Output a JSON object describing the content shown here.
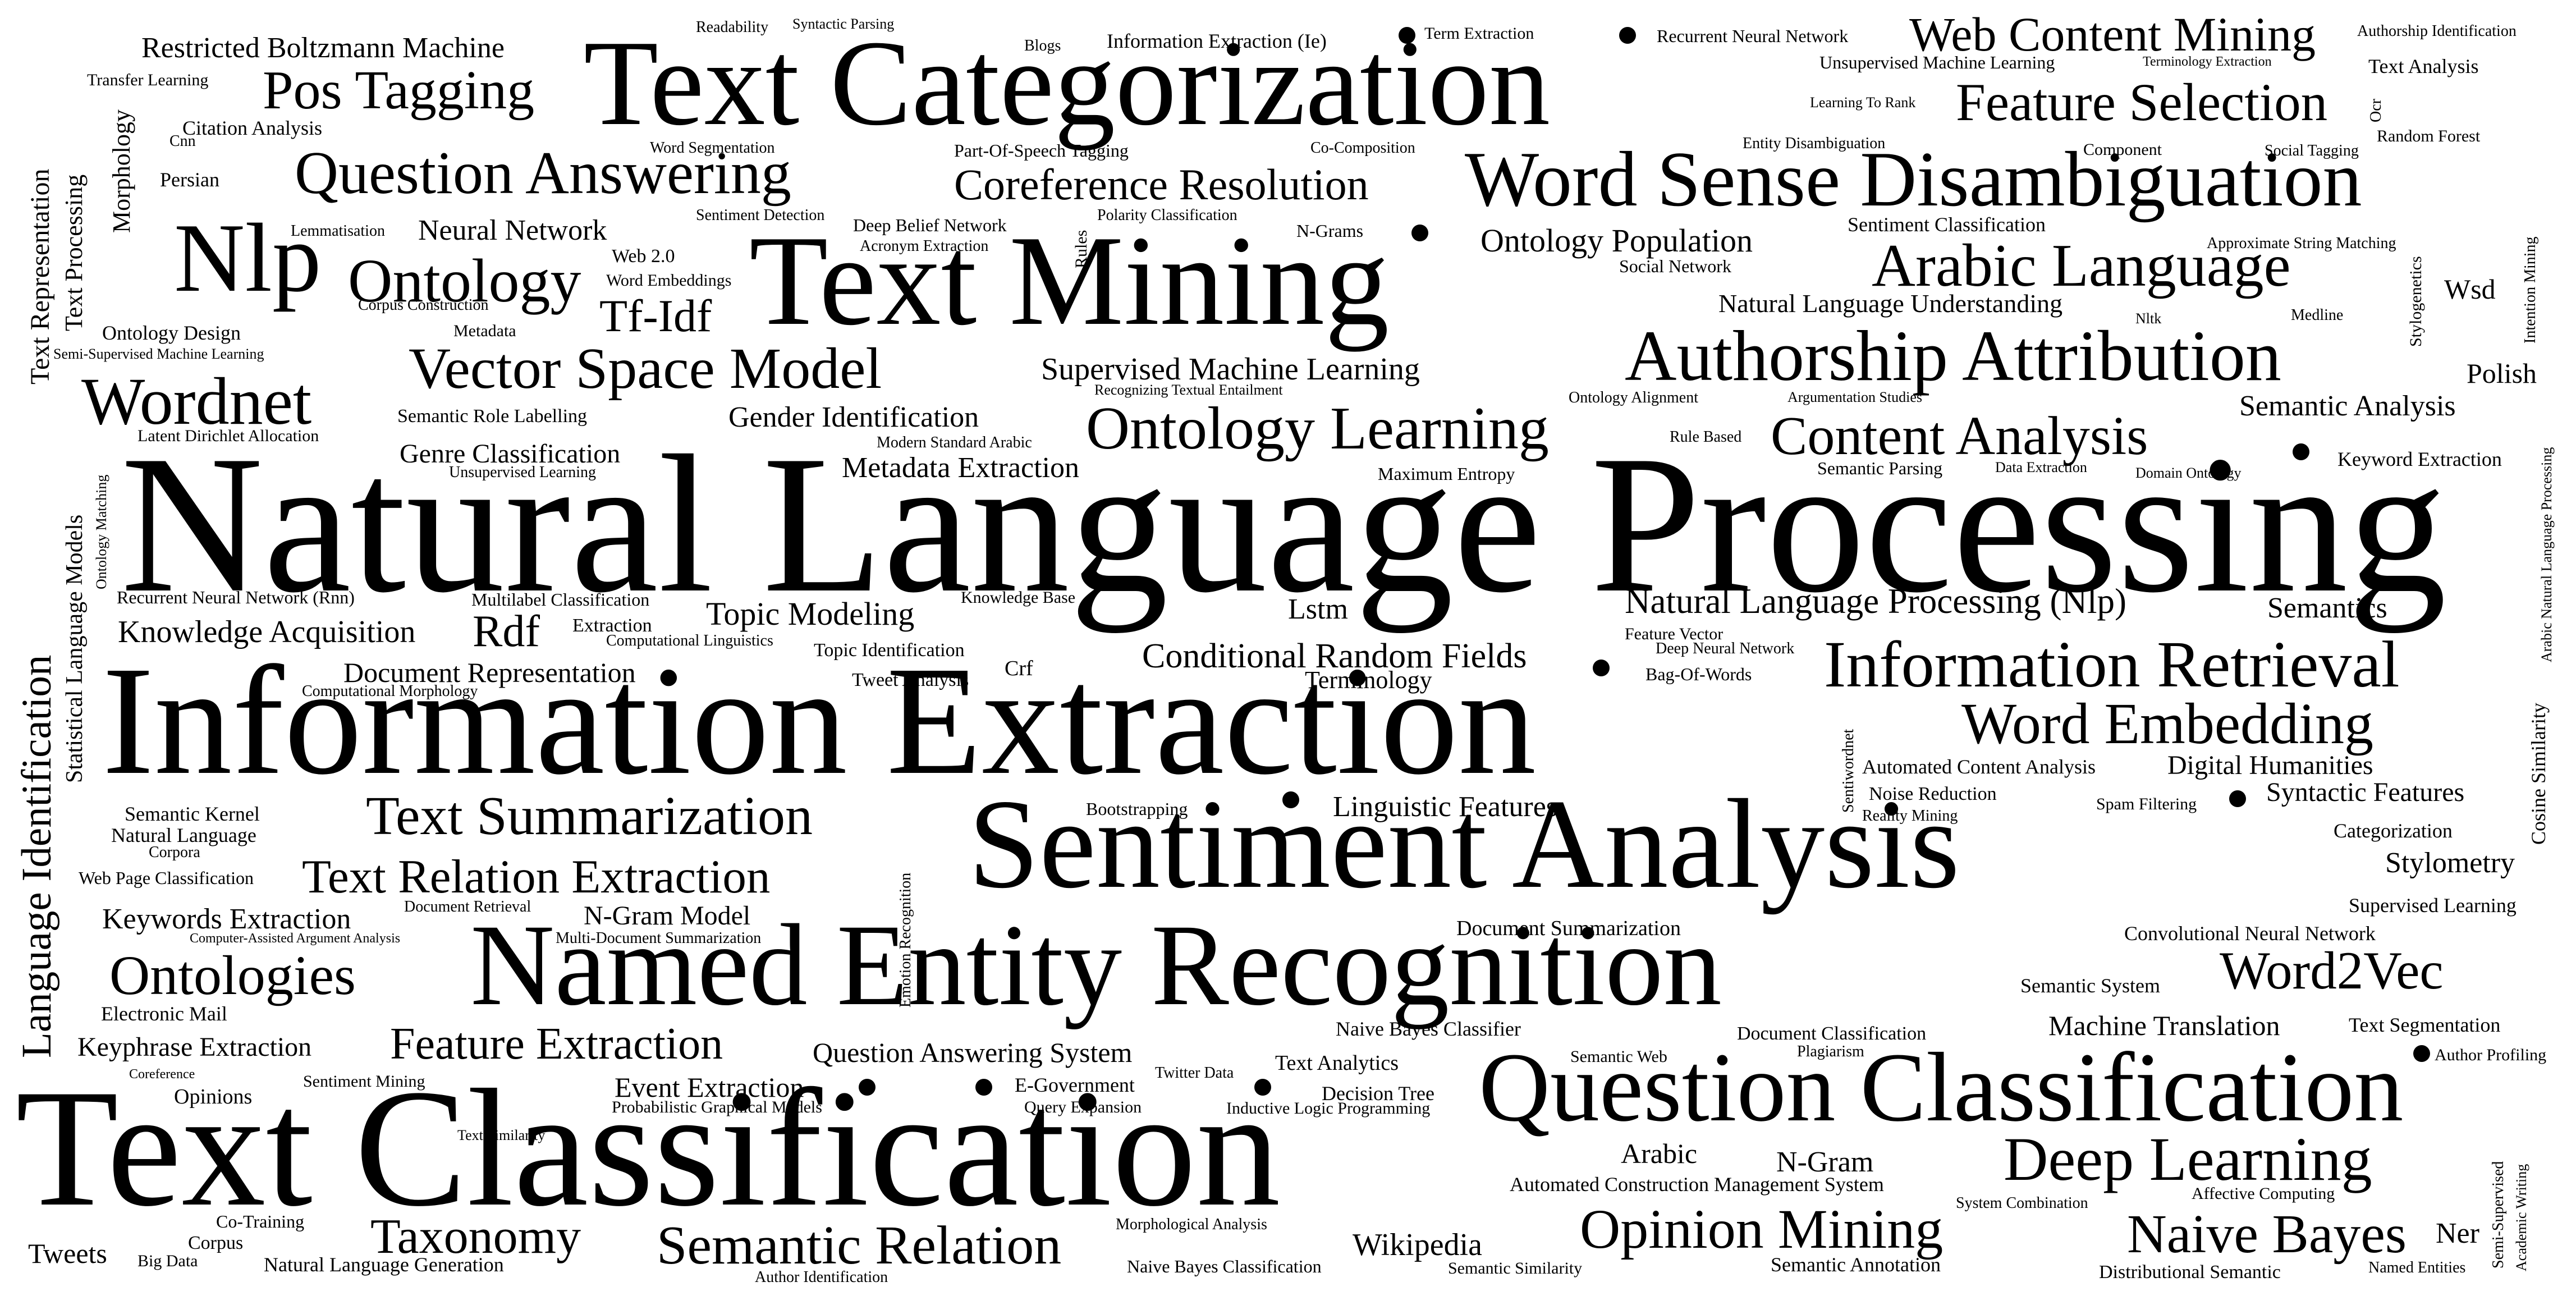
{
  "colors": {
    "background": "#ffffff",
    "text": "#000000"
  },
  "words": {
    "natural_language_processing": "Natural Language Processing",
    "information_extraction": "Information Extraction",
    "text_classification": "Text Classification",
    "sentiment_analysis": "Sentiment Analysis",
    "text_categorization": "Text Categorization",
    "text_mining": "Text Mining",
    "named_entity_recognition": "Named Entity Recognition",
    "question_classification": "Question Classification",
    "word_sense_disambiguation": "Word Sense Disambiguation",
    "authorship_attribution": "Authorship Attribution",
    "nlp": "Nlp",
    "information_retrieval": "Information Retrieval",
    "question_answering": "Question Answering",
    "wordnet": "Wordnet",
    "vector_space_model": "Vector Space Model",
    "ontology_learning": "Ontology Learning",
    "word_embedding": "Word Embedding",
    "arabic_language": "Arabic Language",
    "web_content_mining": "Web Content Mining",
    "feature_selection": "Feature Selection",
    "coreference_resolution": "Coreference Resolution",
    "content_analysis": "Content Analysis",
    "opinion_mining": "Opinion Mining",
    "deep_learning": "Deep Learning",
    "text_summarization": "Text Summarization",
    "ontology": "Ontology",
    "pos_tagging": "Pos Tagging",
    "ontologies": "Ontologies",
    "word2vec": "Word2Vec",
    "naive_bayes": "Naive Bayes",
    "semantic_relation": "Semantic Relation",
    "taxonomy": "Taxonomy",
    "text_relation_extraction": "Text Relation Extraction",
    "feature_extraction": "Feature Extraction",
    "tf_idf": "Tf-Idf",
    "rdf": "Rdf",
    "conditional_random_fields": "Conditional Random Fields",
    "natural_language_processing_nlp": "Natural Language Processing (Nlp)",
    "language_identification": "Language Identification",
    "topic_modeling": "Topic Modeling",
    "knowledge_acquisition": "Knowledge Acquisition",
    "document_representation": "Document Representation",
    "ontology_population": "Ontology Population",
    "supervised_machine_learning": "Supervised Machine Learning",
    "restricted_boltzmann_machine": "Restricted Boltzmann Machine",
    "linguistic_features": "Linguistic Features",
    "semantic_analysis": "Semantic Analysis",
    "metadata_extraction": "Metadata Extraction",
    "gender_identification": "Gender Identification",
    "genre_classification": "Genre Classification",
    "natural_language_understanding": "Natural Language Understanding",
    "neural_network": "Neural Network",
    "semantics": "Semantics",
    "lstm": "Lstm",
    "digital_humanities": "Digital Humanities",
    "syntactic_features": "Syntactic Features",
    "stylometry": "Stylometry",
    "keywords_extraction": "Keywords Extraction",
    "n_gram_model": "N-Gram Model",
    "machine_translation": "Machine Translation",
    "keyphrase_extraction": "Keyphrase Extraction",
    "event_extraction": "Event Extraction",
    "question_answering_system": "Question Answering System",
    "wikipedia": "Wikipedia",
    "tweets": "Tweets",
    "n_gram": "N-Gram",
    "arabic": "Arabic",
    "wsd": "Wsd",
    "polish": "Polish",
    "ner": "Ner",
    "text_analysis": "Text Analysis",
    "text_representation": "Text Representation",
    "text_processing": "Text Processing",
    "morphology": "Morphology",
    "persian": "Persian",
    "citation_analysis": "Citation Analysis",
    "cnn": "Cnn",
    "transfer_learning": "Transfer Learning",
    "readability": "Readability",
    "syntactic_parsing": "Syntactic Parsing",
    "blogs": "Blogs",
    "information_extraction_ie": "Information Extraction (Ie)",
    "term_extraction": "Term Extraction",
    "recurrent_neural_network": "Recurrent Neural Network",
    "authorship_identification": "Authorship Identification",
    "unsupervised_machine_learning": "Unsupervised Machine Learning",
    "terminology_extraction": "Terminology Extraction",
    "learning_to_rank": "Learning To Rank",
    "entity_disambiguation": "Entity Disambiguation",
    "random_forest": "Random Forest",
    "ocr": "Ocr",
    "co_composition": "Co-Composition",
    "word_segmentation": "Word Segmentation",
    "part_of_speech_tagging": "Part-Of-Speech Tagging",
    "component": "Component",
    "social_tagging": "Social Tagging",
    "lemmatisation": "Lemmatisation",
    "sentiment_detection": "Sentiment Detection",
    "deep_belief_network": "Deep Belief Network",
    "polarity_classification": "Polarity Classification",
    "n_grams": "N-Grams",
    "acronym_extraction": "Acronym Extraction",
    "rules": "Rules",
    "sentiment_classification": "Sentiment Classification",
    "approximate_string_matching": "Approximate String Matching",
    "stylogenetics": "Stylogenetics",
    "intention_mining": "Intention Mining",
    "web_2_0": "Web 2.0",
    "word_embeddings": "Word Embeddings",
    "corpus_construction": "Corpus Construction",
    "metadata": "Metadata",
    "social_network": "Social Network",
    "medline": "Medline",
    "nltk": "Nltk",
    "ontology_design": "Ontology Design",
    "semi_supervised_machine_learning": "Semi-Supervised Machine Learning",
    "recognizing_textual_entailment": "Recognizing Textual Entailment",
    "ontology_alignment": "Ontology Alignment",
    "argumentation_studies": "Argumentation Studies",
    "semantic_role_labelling": "Semantic Role Labelling",
    "latent_dirichlet_allocation": "Latent Dirichlet Allocation",
    "modern_standard_arabic": "Modern Standard Arabic",
    "rule_based": "Rule Based",
    "unsupervised_learning": "Unsupervised Learning",
    "maximum_entropy": "Maximum Entropy",
    "semantic_parsing": "Semantic Parsing",
    "data_extraction": "Data Extraction",
    "domain_ontology": "Domain Ontology",
    "keyword_extraction": "Keyword Extraction",
    "arabic_natural_language_processing": "Arabic Natural Language Processing",
    "statistical_language_models": "Statistical Language Models",
    "ontology_matching": "Ontology Matching",
    "recurrent_neural_network_rnn": "Recurrent Neural Network (Rnn)",
    "multilabel_classification": "Multilabel Classification",
    "knowledge_base": "Knowledge Base",
    "extraction": "Extraction",
    "computational_linguistics": "Computational Linguistics",
    "topic_identification": "Topic Identification",
    "crf": "Crf",
    "tweet_analysis": "Tweet Analysis",
    "computational_morphology": "Computational Morphology",
    "feature_vector": "Feature Vector",
    "deep_neural_network": "Deep Neural Network",
    "bag_of_words": "Bag-Of-Words",
    "terminology": "Terminology",
    "cosine_similarity": "Cosine Similarity",
    "sentiwordnet": "Sentiwordnet",
    "automated_content_analysis": "Automated Content Analysis",
    "noise_reduction": "Noise Reduction",
    "reality_mining": "Reality Mining",
    "spam_filtering": "Spam Filtering",
    "categorization": "Categorization",
    "semantic_kernel": "Semantic Kernel",
    "natural_language": "Natural Language",
    "corpora": "Corpora",
    "web_page_classification": "Web Page Classification",
    "bootstrapping": "Bootstrapping",
    "emotion_recognition": "Emotion Recognition",
    "document_retrieval": "Document Retrieval",
    "computer_assisted_argument_analysis": "Computer-Assisted Argument Analysis",
    "multi_document_summarization": "Multi-Document Summarization",
    "document_summarization": "Document Summarization",
    "supervised_learning": "Supervised Learning",
    "convolutional_neural_network": "Convolutional Neural Network",
    "semantic_system": "Semantic System",
    "electronic_mail": "Electronic Mail",
    "naive_bayes_classifier": "Naive Bayes Classifier",
    "document_classification": "Document Classification",
    "plagiarism": "Plagiarism",
    "semantic_web": "Semantic Web",
    "text_segmentation": "Text Segmentation",
    "author_profiling": "Author Profiling",
    "coreference": "Coreference",
    "sentiment_mining": "Sentiment Mining",
    "opinions": "Opinions",
    "twitter_data": "Twitter Data",
    "text_analytics": "Text Analytics",
    "e_government": "E-Government",
    "decision_tree": "Decision Tree",
    "probabilistic_graphical_models": "Probabilistic Graphical Models",
    "query_expansion": "Query Expansion",
    "inductive_logic_programming": "Inductive Logic Programming",
    "text_similarity": "Text Similarity",
    "automated_construction_management_system": "Automated Construction Management System",
    "system_combination": "System Combination",
    "affective_computing": "Affective Computing",
    "semi_supervised": "Semi-Supervised",
    "academic_writing": "Academic Writing",
    "co_training": "Co-Training",
    "corpus": "Corpus",
    "big_data": "Big Data",
    "natural_language_generation": "Natural Language Generation",
    "morphological_analysis": "Morphological Analysis",
    "author_identification": "Author Identification",
    "naive_bayes_classification": "Naive Bayes Classification",
    "semantic_similarity": "Semantic Similarity",
    "semantic_annotation": "Semantic Annotation",
    "distributional_semantic": "Distributional Semantic",
    "named_entities": "Named Entities"
  }
}
